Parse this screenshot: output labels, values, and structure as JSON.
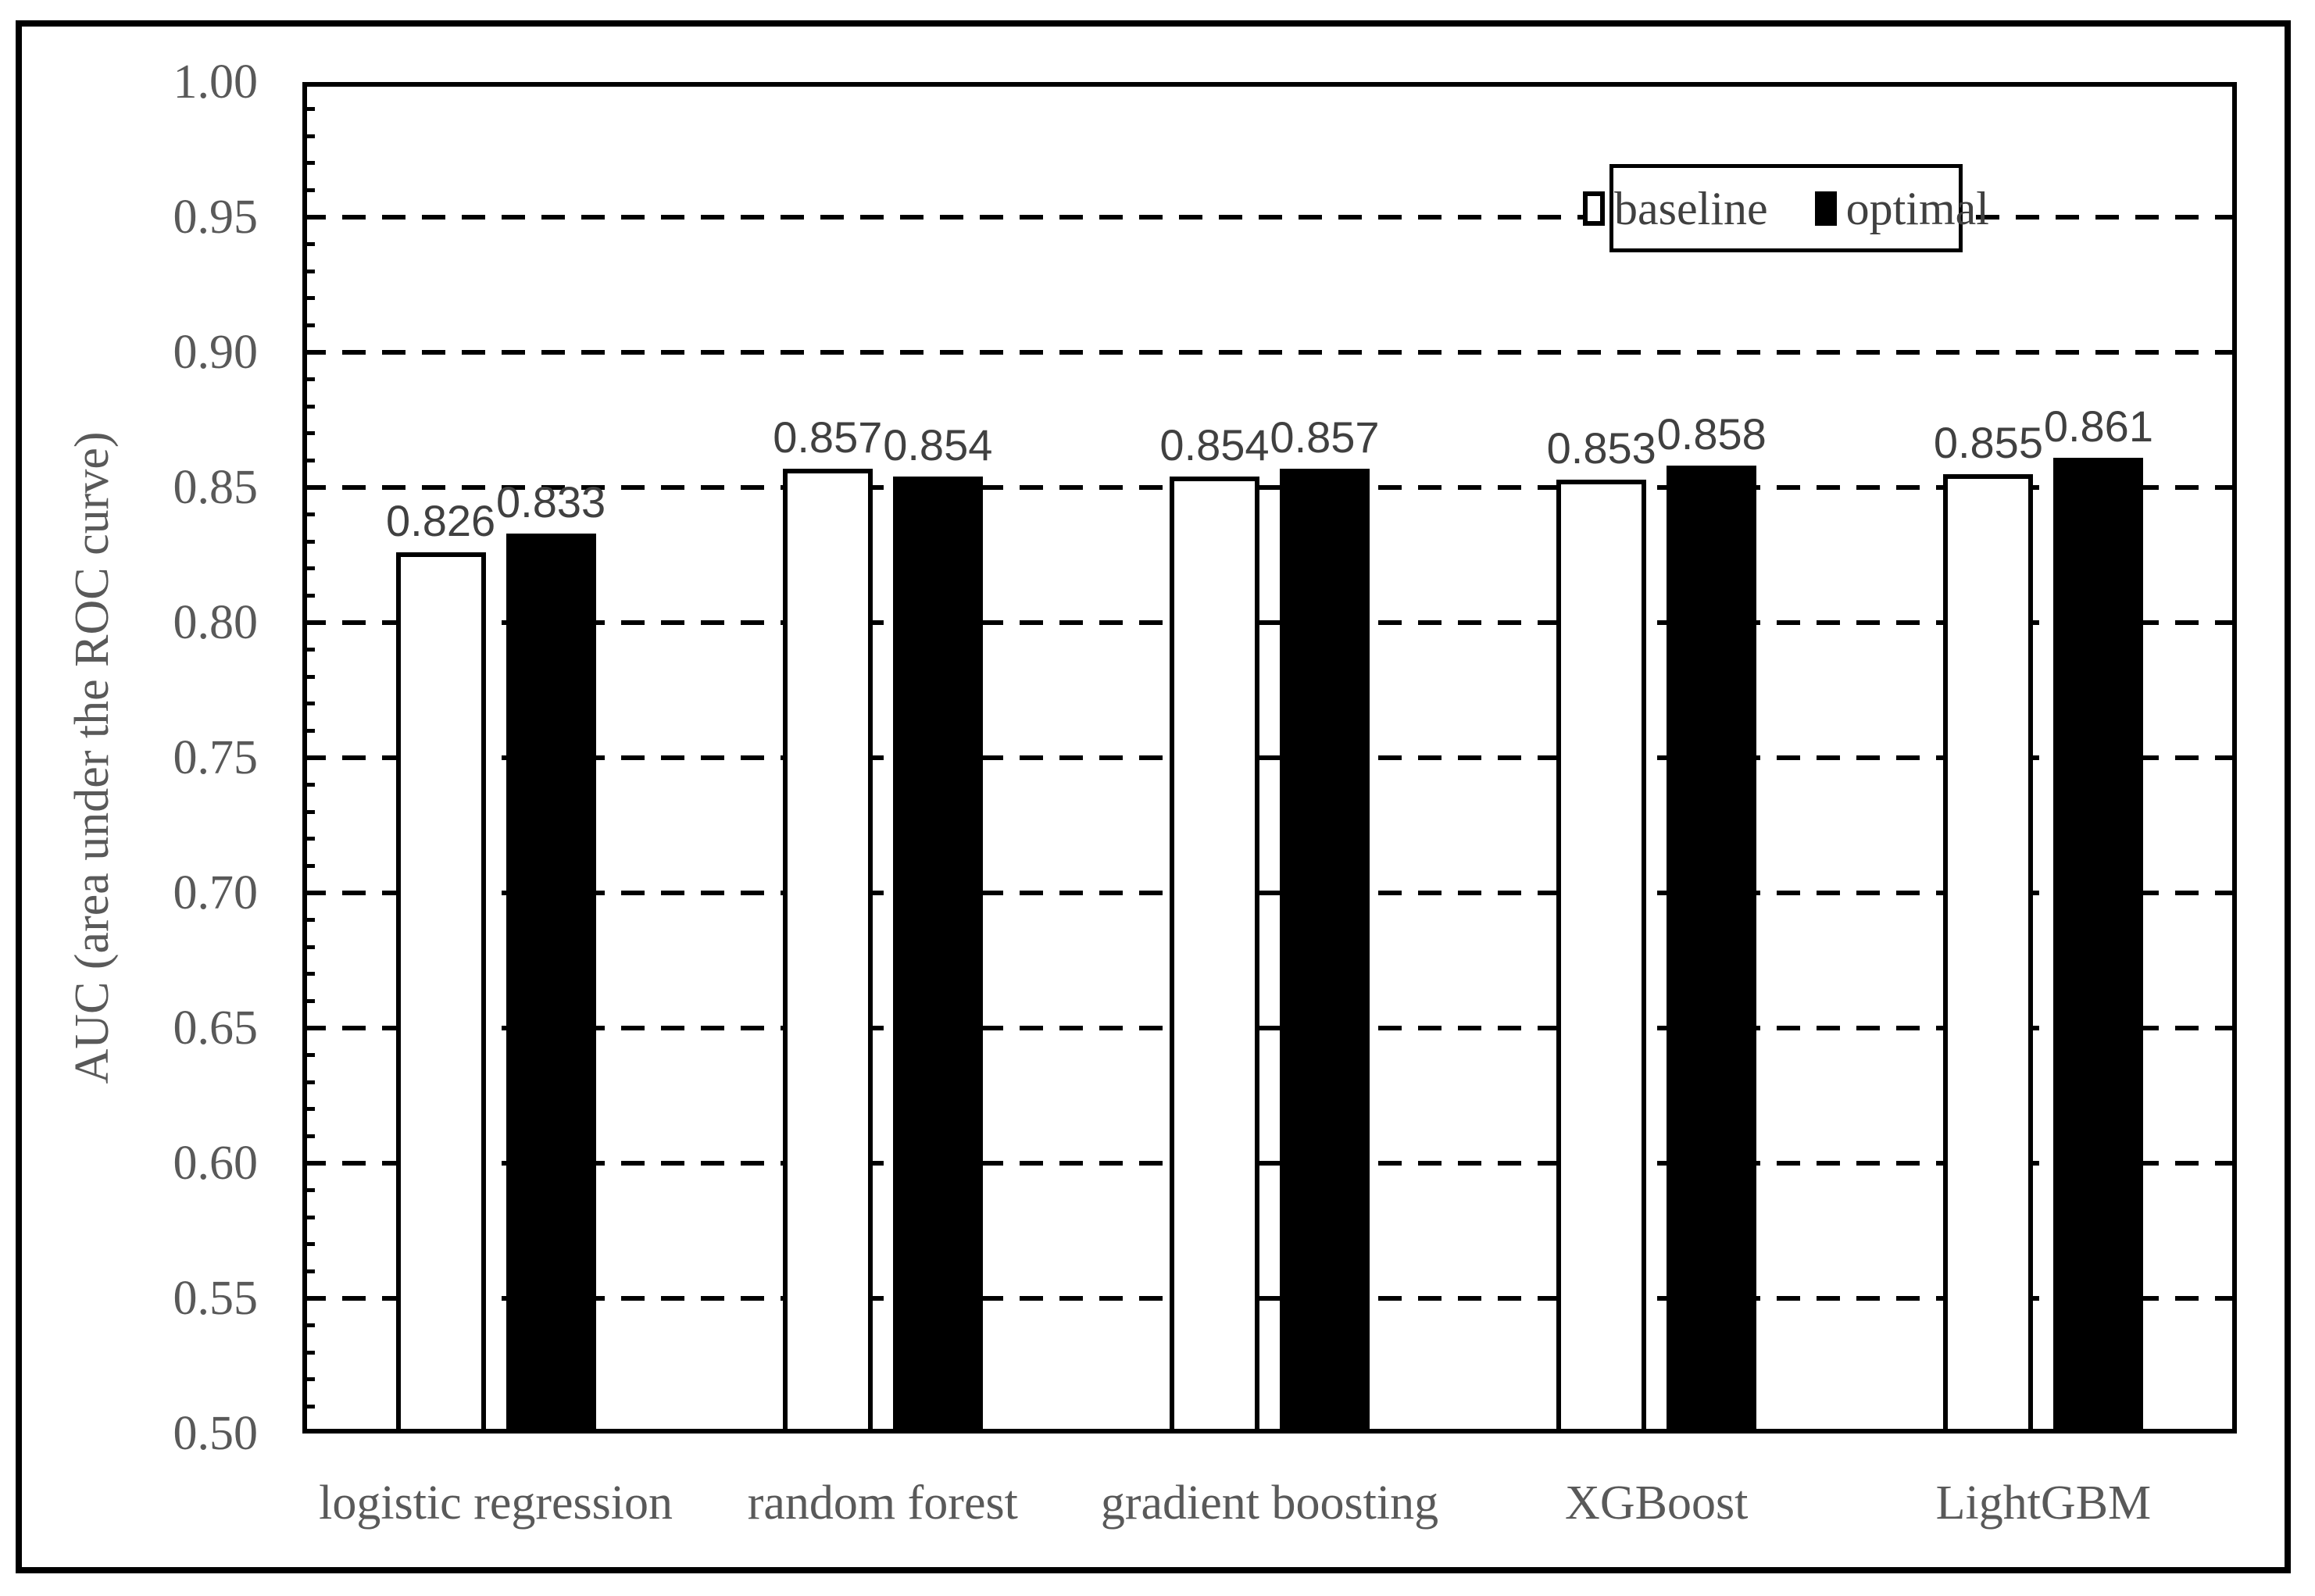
{
  "chart_data": {
    "type": "bar",
    "title": "",
    "xlabel": "",
    "ylabel": "AUC  (area under the ROC curve)",
    "categories": [
      "logistic regression",
      "random forest",
      "gradient boosting",
      "XGBoost",
      "LightGBM"
    ],
    "series": [
      {
        "name": "baseline",
        "fill": "#ffffff",
        "values": [
          0.826,
          0.857,
          0.854,
          0.853,
          0.855
        ]
      },
      {
        "name": "optimal",
        "fill": "#000000",
        "values": [
          0.833,
          0.854,
          0.857,
          0.858,
          0.861
        ]
      }
    ],
    "ylim": [
      0.5,
      1.0
    ],
    "ytick_labels": [
      "1.00",
      "0.95",
      "0.90",
      "0.85",
      "0.80",
      "0.75",
      "0.70",
      "0.65",
      "0.60",
      "0.55",
      "0.50"
    ],
    "major_tick_step": 0.05,
    "minor_tick_step": 0.01,
    "gridlines": {
      "style": "dashed",
      "orientation": "horizontal",
      "values": [
        0.95,
        0.9,
        0.85,
        0.8,
        0.75,
        0.7,
        0.65,
        0.6,
        0.55
      ]
    },
    "legend": {
      "position": "top-right",
      "entries": [
        "baseline",
        "optimal"
      ]
    },
    "data_label_decimals": 3
  },
  "colors": {
    "background": "#ffffff",
    "line": "#000000",
    "axis_tick_label": "#595959",
    "category_label": "#595959",
    "data_label": "#404040",
    "legend_text": "#404040",
    "baseline_fill": "#ffffff",
    "optimal_fill": "#000000"
  }
}
